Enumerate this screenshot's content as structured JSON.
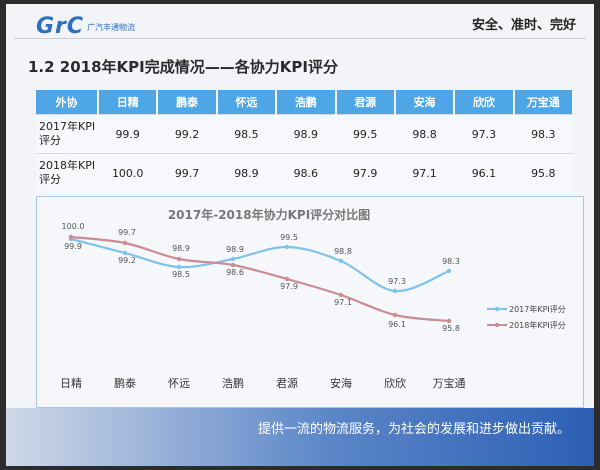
{
  "header": {
    "logo_text": "GrC",
    "logo_sub": "广汽丰通物流",
    "slogan": "安全、准时、完好"
  },
  "slide_title": "1.2  2018年KPI完成情况——各协力KPI评分",
  "table": {
    "header": [
      "外协",
      "日精",
      "鹏泰",
      "怀远",
      "浩鹏",
      "君源",
      "安海",
      "欣欣",
      "万宝通"
    ],
    "rows": [
      {
        "label_line1": "2017年KPI",
        "label_line2": "评分",
        "values": [
          "99.9",
          "99.2",
          "98.5",
          "98.9",
          "99.5",
          "98.8",
          "97.3",
          "98.3"
        ]
      },
      {
        "label_line1": "2018年KPI",
        "label_line2": "评分",
        "values": [
          "100.0",
          "99.7",
          "98.9",
          "98.6",
          "97.9",
          "97.1",
          "96.1",
          "95.8"
        ]
      }
    ]
  },
  "chart_data": {
    "type": "line",
    "title": "2017年-2018年协力KPI评分对比图",
    "categories": [
      "日精",
      "鹏泰",
      "怀远",
      "浩鹏",
      "君源",
      "安海",
      "欣欣",
      "万宝通"
    ],
    "series": [
      {
        "name": "2017年KPI评分",
        "values": [
          99.9,
          99.2,
          98.5,
          98.9,
          99.5,
          98.8,
          97.3,
          98.3
        ],
        "labels": [
          "99.9",
          "99.2",
          "98.5",
          "98.9",
          "99.5",
          "98.8",
          "97.3",
          "98.3"
        ],
        "color": "#7ec3ea"
      },
      {
        "name": "2018年KPI评分",
        "values": [
          100.0,
          99.7,
          98.9,
          98.6,
          97.9,
          97.1,
          96.1,
          95.8
        ],
        "labels": [
          "100.0",
          "99.7",
          "98.9",
          "98.6",
          "97.9",
          "97.1",
          "96.1",
          "95.8"
        ],
        "color": "#c98c92"
      }
    ],
    "legend_position": "right",
    "grid": false
  },
  "footer": {
    "text": "提供一流的物流服务，为社会的发展和进步做出贡献。"
  }
}
